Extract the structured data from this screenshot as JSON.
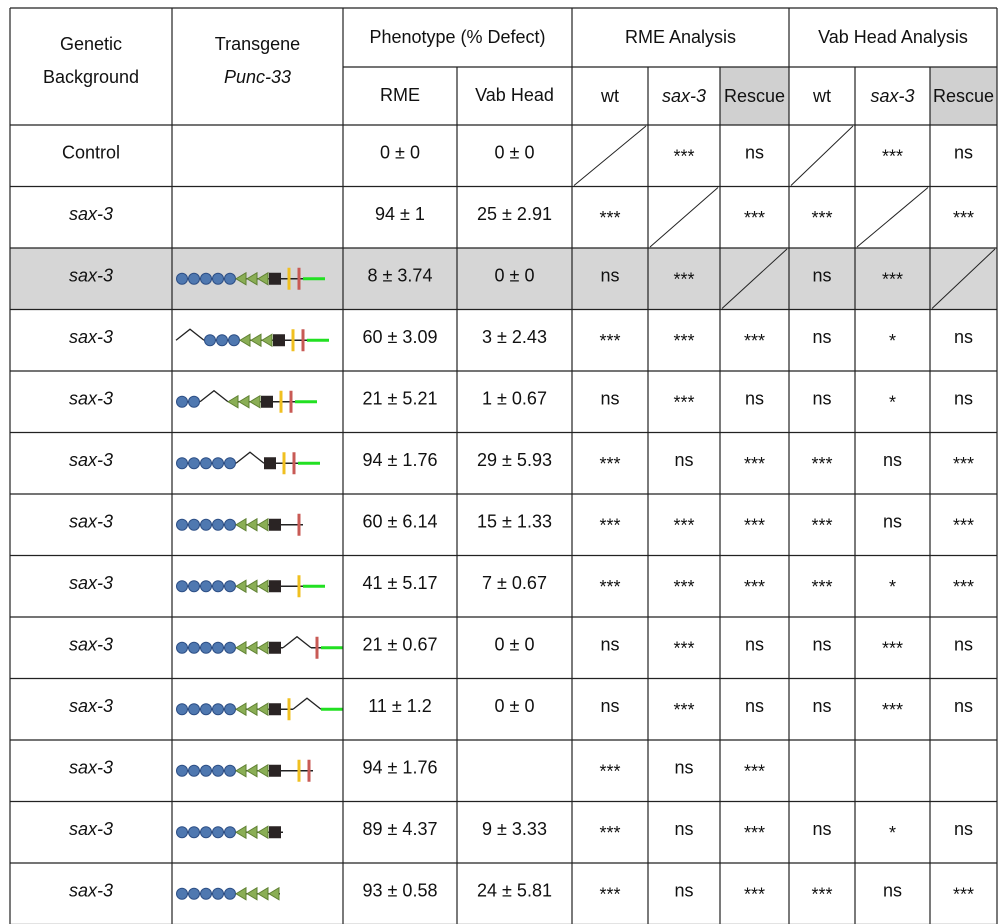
{
  "header": {
    "genetic_background": [
      "Genetic",
      "Background"
    ],
    "transgene": {
      "title": "Transgene",
      "promoter": "Punc-33"
    },
    "phenotype": {
      "title": "Phenotype (% Defect)",
      "columns": [
        "RME",
        "Vab Head"
      ]
    },
    "rme_analysis": {
      "title": "RME Analysis",
      "columns": [
        "wt",
        "sax-3",
        "Rescue"
      ]
    },
    "vab_head_analysis": {
      "title": "Vab Head Analysis",
      "columns": [
        "wt",
        "sax-3",
        "Rescue"
      ]
    }
  },
  "rows": [
    {
      "background": "Control",
      "phenotype": [
        "0 ± 0",
        "0 ± 0"
      ],
      "rme_analysis": [
        null,
        "***",
        "ns"
      ],
      "vab_head_analysis": [
        null,
        "***",
        "ns"
      ]
    },
    {
      "background": "sax-3",
      "phenotype": [
        "94 ± 1",
        "25 ± 2.91"
      ],
      "rme_analysis": [
        "***",
        null,
        "***"
      ],
      "vab_head_analysis": [
        "***",
        null,
        "***"
      ]
    },
    {
      "background": "sax-3",
      "phenotype": [
        "8 ± 3.74",
        "0 ± 0"
      ],
      "rme_analysis": [
        "ns",
        "***",
        null
      ],
      "vab_head_analysis": [
        "ns",
        "***",
        null
      ]
    },
    {
      "background": "sax-3",
      "phenotype": [
        "60 ± 3.09",
        "3 ± 2.43"
      ],
      "rme_analysis": [
        "***",
        "***",
        "***"
      ],
      "vab_head_analysis": [
        "ns",
        "*",
        "ns"
      ]
    },
    {
      "background": "sax-3",
      "phenotype": [
        "21 ± 5.21",
        "1 ± 0.67"
      ],
      "rme_analysis": [
        "ns",
        "***",
        "ns"
      ],
      "vab_head_analysis": [
        "ns",
        "*",
        "ns"
      ]
    },
    {
      "background": "sax-3",
      "phenotype": [
        "94 ± 1.76",
        "29 ± 5.93"
      ],
      "rme_analysis": [
        "***",
        "ns",
        "***"
      ],
      "vab_head_analysis": [
        "***",
        "ns",
        "***"
      ]
    },
    {
      "background": "sax-3",
      "phenotype": [
        "60 ± 6.14",
        "15 ± 1.33"
      ],
      "rme_analysis": [
        "***",
        "***",
        "***"
      ],
      "vab_head_analysis": [
        "***",
        "ns",
        "***"
      ]
    },
    {
      "background": "sax-3",
      "phenotype": [
        "41 ± 5.17",
        "7 ± 0.67"
      ],
      "rme_analysis": [
        "***",
        "***",
        "***"
      ],
      "vab_head_analysis": [
        "***",
        "*",
        "***"
      ]
    },
    {
      "background": "sax-3",
      "phenotype": [
        "21 ± 0.67",
        "0 ± 0"
      ],
      "rme_analysis": [
        "ns",
        "***",
        "ns"
      ],
      "vab_head_analysis": [
        "ns",
        "***",
        "ns"
      ]
    },
    {
      "background": "sax-3",
      "phenotype": [
        "11 ± 1.2",
        "0 ± 0"
      ],
      "rme_analysis": [
        "ns",
        "***",
        "ns"
      ],
      "vab_head_analysis": [
        "ns",
        "***",
        "ns"
      ]
    },
    {
      "background": "sax-3",
      "phenotype": [
        "94 ± 1.76",
        null
      ],
      "rme_analysis": [
        "***",
        "ns",
        "***"
      ],
      "vab_head_analysis": [
        null,
        null,
        null
      ]
    },
    {
      "background": "sax-3",
      "phenotype": [
        "89 ± 4.37",
        "9 ± 3.33"
      ],
      "rme_analysis": [
        "***",
        "ns",
        "***"
      ],
      "vab_head_analysis": [
        "ns",
        "*",
        "ns"
      ]
    },
    {
      "background": "sax-3",
      "phenotype": [
        "93 ± 0.58",
        "24 ± 5.81"
      ],
      "rme_analysis": [
        "***",
        "ns",
        "***"
      ],
      "vab_head_analysis": [
        "***",
        "ns",
        "***"
      ]
    }
  ]
}
